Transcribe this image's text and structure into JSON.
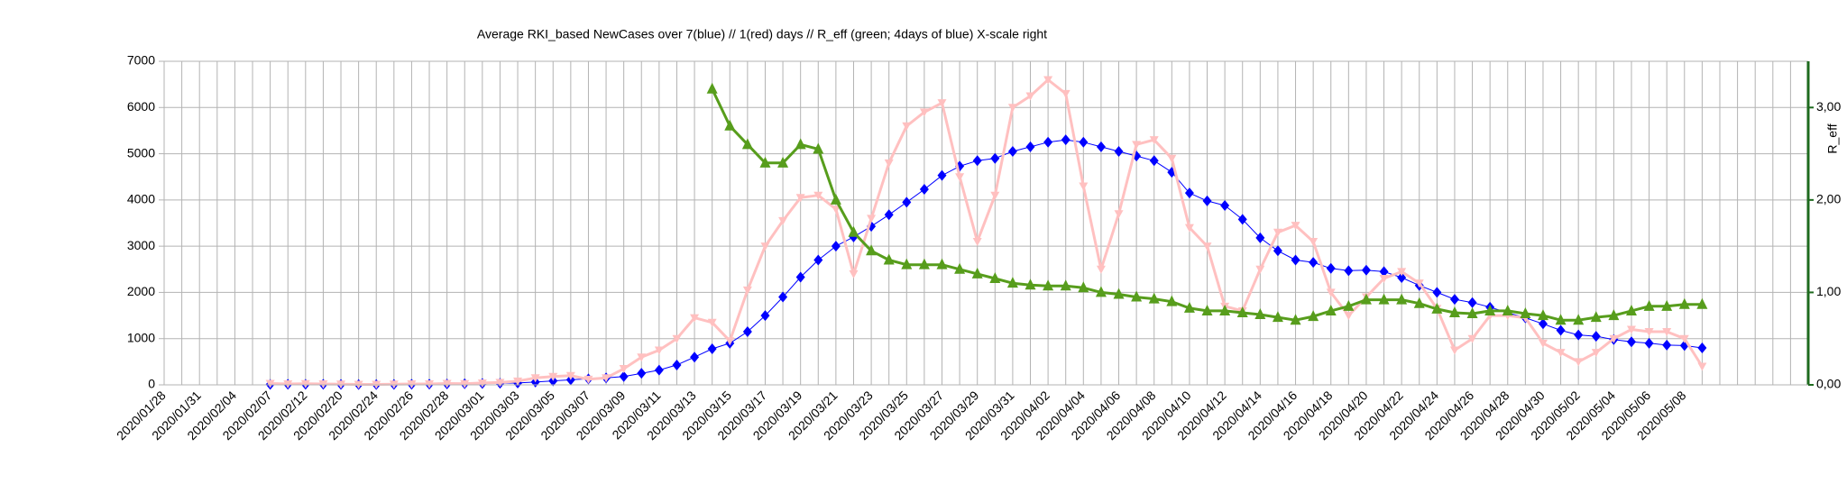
{
  "chart_data": {
    "type": "line",
    "title": "Average RKI_based NewCases over 7(blue) // 1(red) days //  R_eff (green; 4days of blue) X-scale right",
    "y2_label": "R_eff",
    "categories": [
      "2020/01/28",
      null,
      "2020/01/31",
      null,
      "2020/02/04",
      null,
      "2020/02/07",
      null,
      "2020/02/12",
      null,
      "2020/02/20",
      null,
      "2020/02/24",
      null,
      "2020/02/26",
      null,
      "2020/02/28",
      null,
      "2020/03/01",
      null,
      "2020/03/03",
      null,
      "2020/03/05",
      null,
      "2020/03/07",
      null,
      "2020/03/09",
      null,
      "2020/03/11",
      null,
      "2020/03/13",
      null,
      "2020/03/15",
      null,
      "2020/03/17",
      null,
      "2020/03/19",
      null,
      "2020/03/21",
      null,
      "2020/03/23",
      null,
      "2020/03/25",
      null,
      "2020/03/27",
      null,
      "2020/03/29",
      null,
      "2020/03/31",
      null,
      "2020/04/02",
      null,
      "2020/04/04",
      null,
      "2020/04/06",
      null,
      "2020/04/08",
      null,
      "2020/04/10",
      null,
      "2020/04/12",
      null,
      "2020/04/14",
      null,
      "2020/04/16",
      null,
      "2020/04/18",
      null,
      "2020/04/20",
      null,
      "2020/04/22",
      null,
      "2020/04/24",
      null,
      "2020/04/26",
      null,
      "2020/04/28",
      null,
      "2020/04/30",
      null,
      "2020/05/02",
      null,
      "2020/05/04",
      null,
      "2020/05/06",
      null,
      "2020/05/08",
      null,
      null,
      null,
      null,
      null,
      null
    ],
    "series": [
      {
        "name": "7 days",
        "color": "#0000ff",
        "marker": "diamond",
        "width": 1,
        "values": [
          null,
          null,
          null,
          null,
          null,
          null,
          10,
          12,
          12,
          12,
          10,
          8,
          8,
          10,
          12,
          15,
          20,
          25,
          30,
          35,
          40,
          60,
          85,
          110,
          130,
          150,
          180,
          250,
          320,
          430,
          600,
          780,
          900,
          1150,
          1500,
          1900,
          2330,
          2700,
          3000,
          3200,
          3430,
          3680,
          3950,
          4230,
          4530,
          4730,
          4850,
          4900,
          5050,
          5150,
          5250,
          5300,
          5250,
          5150,
          5050,
          4950,
          4850,
          4600,
          4150,
          3980,
          3880,
          3580,
          3180,
          2900,
          2700,
          2650,
          2520,
          2470,
          2480,
          2450,
          2320,
          2150,
          2000,
          1850,
          1780,
          1680,
          1560,
          1450,
          1320,
          1180,
          1080,
          1050,
          980,
          930,
          900,
          860,
          850,
          800,
          null,
          null,
          null,
          null,
          null
        ]
      },
      {
        "name": "1 day",
        "color": "#ffc0c0",
        "marker": "triangle-down",
        "width": 3,
        "values": [
          null,
          null,
          null,
          null,
          null,
          null,
          30,
          20,
          25,
          20,
          15,
          10,
          10,
          15,
          20,
          20,
          30,
          25,
          40,
          50,
          80,
          150,
          180,
          200,
          120,
          150,
          350,
          600,
          750,
          1000,
          1450,
          1350,
          950,
          2050,
          3000,
          3550,
          4050,
          4100,
          3800,
          2400,
          3600,
          4800,
          5600,
          5900,
          6100,
          4500,
          3100,
          4100,
          6000,
          6250,
          6600,
          6300,
          4300,
          2500,
          3700,
          5200,
          5300,
          4900,
          3400,
          3000,
          1700,
          1600,
          2500,
          3300,
          3450,
          3100,
          2000,
          1500,
          1900,
          2300,
          2450,
          2200,
          1650,
          750,
          1000,
          1500,
          1500,
          1450,
          900,
          700,
          500,
          700,
          1000,
          1200,
          1150,
          1150,
          1000,
          400,
          null,
          null,
          null,
          null,
          null
        ]
      },
      {
        "name": "R_eff",
        "color": "#579d1c",
        "marker": "triangle-up",
        "width": 3,
        "axis": "y2",
        "values": [
          null,
          null,
          null,
          null,
          null,
          null,
          null,
          null,
          null,
          null,
          null,
          null,
          null,
          null,
          null,
          null,
          null,
          null,
          null,
          null,
          null,
          null,
          null,
          null,
          null,
          null,
          null,
          null,
          null,
          null,
          null,
          3.2,
          2.8,
          2.6,
          2.4,
          2.4,
          2.6,
          2.55,
          2.0,
          1.65,
          1.45,
          1.35,
          1.3,
          1.3,
          1.3,
          1.25,
          1.2,
          1.15,
          1.1,
          1.08,
          1.07,
          1.07,
          1.05,
          1.0,
          0.98,
          0.95,
          0.93,
          0.9,
          0.83,
          0.8,
          0.8,
          0.78,
          0.76,
          0.73,
          0.7,
          0.74,
          0.8,
          0.85,
          0.92,
          0.92,
          0.92,
          0.88,
          0.82,
          0.78,
          0.77,
          0.8,
          0.8,
          0.77,
          0.75,
          0.7,
          0.7,
          0.73,
          0.75,
          0.8,
          0.85,
          0.85,
          0.87,
          0.87,
          null,
          null,
          null,
          null,
          null
        ]
      }
    ],
    "ylim": [
      0,
      7000
    ],
    "yticks": [
      0,
      1000,
      2000,
      3000,
      4000,
      5000,
      6000,
      7000
    ],
    "y2lim": [
      0,
      3.5
    ],
    "y2ticks": [
      {
        "value": 0,
        "label": "0,00"
      },
      {
        "value": 1,
        "label": "1,00"
      },
      {
        "value": 2,
        "label": "2,00"
      },
      {
        "value": 3,
        "label": "3,00"
      }
    ],
    "y2_color": "#1e6a1e",
    "grid": true
  }
}
